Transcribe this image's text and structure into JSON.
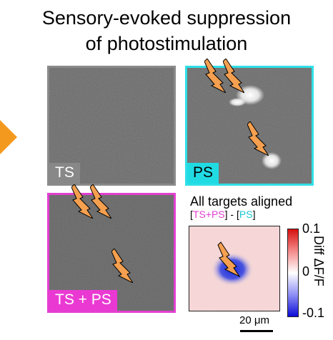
{
  "title": {
    "line1": "Sensory-evoked suppression",
    "line2": "of photostimulation"
  },
  "panels": {
    "ts": "TS",
    "ps": "PS",
    "ts_ps": "TS + PS"
  },
  "aligned": {
    "title": "All targets aligned",
    "sub_open1": "[",
    "sub_tsps": "TS+PS",
    "sub_mid": "] - [",
    "sub_ps": "PS",
    "sub_close": "]"
  },
  "colorbar": {
    "max": "0.1",
    "mid": "0",
    "min": "-0.1",
    "label": "Diff ΔF/F"
  },
  "scalebar": {
    "label": "20 μm"
  },
  "colors": {
    "ts": "#888888",
    "ps": "#21dbe3",
    "ts_ps": "#ea39d2",
    "bolt": "#f4a050",
    "arrow": "#f39a1e"
  }
}
